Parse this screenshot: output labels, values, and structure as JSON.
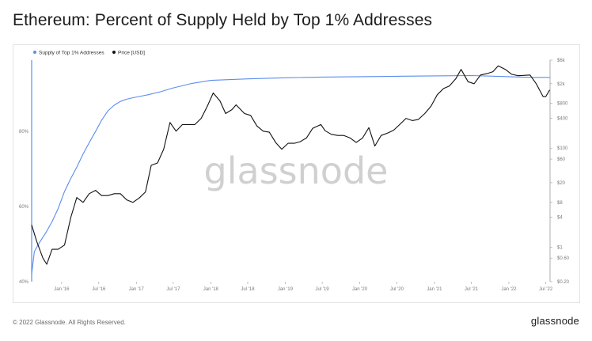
{
  "title": "Ethereum: Percent of Supply Held by Top 1% Addresses",
  "footer": {
    "copyright": "© 2022 Glassnode. All Rights Reserved.",
    "brand": "glassnode"
  },
  "watermark": "glassnode",
  "colors": {
    "supply": "#5b8def",
    "price": "#111111",
    "grid": "#eeeeee",
    "axis": "#9a9a9a"
  },
  "chart_data": {
    "type": "line",
    "title": "Ethereum: Percent of Supply Held by Top 1% Addresses",
    "legend_position": "top-left",
    "grid": false,
    "x_ticks": [
      "Jan '16",
      "Jul '16",
      "Jan '17",
      "Jul '17",
      "Jan '18",
      "Jul '18",
      "Jan '19",
      "Jul '19",
      "Jan '20",
      "Jul '20",
      "Jan '21",
      "Jul '21",
      "Jan '22",
      "Jul '22"
    ],
    "y_left": {
      "scale": "linear",
      "range": [
        40,
        99
      ],
      "ticks": [
        40,
        60,
        80
      ],
      "tick_labels": [
        "40%",
        "60%",
        "80%"
      ]
    },
    "y_right": {
      "scale": "log",
      "range": [
        0.2,
        6000
      ],
      "ticks": [
        0.2,
        0.6,
        1,
        4,
        8,
        20,
        60,
        100,
        400,
        800,
        2000,
        6000
      ],
      "tick_labels": [
        "$0.20",
        "$0.60",
        "$1",
        "$4",
        "$8",
        "$20",
        "$60",
        "$100",
        "$400",
        "$800",
        "$2k",
        "$6k"
      ]
    },
    "series": [
      {
        "name": "Supply of Top 1% Addresses",
        "axis": "left",
        "color": "#5b8def",
        "x": [
          "2015-08-07",
          "2015-08-20",
          "2015-09-15",
          "2015-10-15",
          "2015-11-15",
          "2015-12-15",
          "2016-01-15",
          "2016-02-15",
          "2016-03-15",
          "2016-04-15",
          "2016-05-15",
          "2016-06-15",
          "2016-07-15",
          "2016-08-15",
          "2016-09-15",
          "2016-10-15",
          "2016-11-15",
          "2016-12-15",
          "2017-01-15",
          "2017-03-01",
          "2017-05-01",
          "2017-07-01",
          "2017-10-01",
          "2018-01-01",
          "2018-07-01",
          "2019-01-01",
          "2019-07-01",
          "2020-01-01",
          "2020-07-01",
          "2021-01-01",
          "2021-07-01",
          "2022-01-01",
          "2022-03-01",
          "2022-05-01",
          "2022-07-01",
          "2022-07-20"
        ],
        "y": [
          42,
          48,
          50.5,
          53,
          56,
          59.5,
          64,
          67.5,
          70.5,
          74,
          77,
          80,
          83,
          85.5,
          87,
          88,
          88.6,
          89,
          89.3,
          89.8,
          90.6,
          91.6,
          92.8,
          93.6,
          94,
          94.3,
          94.5,
          94.6,
          94.7,
          94.8,
          94.9,
          94.6,
          94.5,
          94.4,
          94.4,
          94.4
        ]
      },
      {
        "name": "Price [USD]",
        "axis": "right",
        "color": "#111111",
        "x": [
          "2015-08-07",
          "2015-09-01",
          "2015-10-01",
          "2015-10-20",
          "2015-11-15",
          "2015-12-15",
          "2016-01-15",
          "2016-02-15",
          "2016-03-15",
          "2016-04-15",
          "2016-05-15",
          "2016-06-15",
          "2016-07-15",
          "2016-08-15",
          "2016-09-15",
          "2016-10-15",
          "2016-11-15",
          "2016-12-15",
          "2017-01-15",
          "2017-02-15",
          "2017-03-15",
          "2017-04-15",
          "2017-05-15",
          "2017-06-15",
          "2017-07-15",
          "2017-08-15",
          "2017-09-15",
          "2017-10-15",
          "2017-11-15",
          "2017-12-15",
          "2018-01-13",
          "2018-02-15",
          "2018-03-15",
          "2018-04-15",
          "2018-05-05",
          "2018-06-15",
          "2018-07-15",
          "2018-08-15",
          "2018-09-15",
          "2018-10-15",
          "2018-11-15",
          "2018-12-15",
          "2019-01-15",
          "2019-02-15",
          "2019-03-15",
          "2019-04-15",
          "2019-05-15",
          "2019-06-25",
          "2019-07-15",
          "2019-08-15",
          "2019-09-15",
          "2019-10-15",
          "2019-11-15",
          "2019-12-15",
          "2020-01-15",
          "2020-02-15",
          "2020-03-15",
          "2020-04-15",
          "2020-05-15",
          "2020-06-15",
          "2020-07-15",
          "2020-08-15",
          "2020-09-15",
          "2020-10-15",
          "2020-11-15",
          "2020-12-15",
          "2021-01-15",
          "2021-02-15",
          "2021-03-15",
          "2021-04-15",
          "2021-05-12",
          "2021-06-15",
          "2021-07-15",
          "2021-08-15",
          "2021-09-15",
          "2021-10-15",
          "2021-11-10",
          "2021-12-15",
          "2022-01-15",
          "2022-02-15",
          "2022-03-15",
          "2022-04-15",
          "2022-05-15",
          "2022-06-18",
          "2022-07-01",
          "2022-07-20"
        ],
        "y": [
          2.8,
          1.3,
          0.6,
          0.45,
          0.9,
          0.9,
          1.1,
          4,
          10,
          8,
          12,
          14,
          11,
          11,
          12,
          12,
          9,
          8,
          9.8,
          13,
          45,
          50,
          95,
          330,
          220,
          300,
          300,
          300,
          400,
          700,
          1300,
          900,
          500,
          600,
          750,
          500,
          460,
          280,
          220,
          210,
          130,
          95,
          125,
          125,
          135,
          160,
          250,
          300,
          225,
          190,
          180,
          180,
          160,
          130,
          160,
          260,
          110,
          180,
          200,
          230,
          300,
          400,
          360,
          380,
          500,
          700,
          1200,
          1600,
          1800,
          2500,
          3900,
          2200,
          2000,
          3000,
          3200,
          3500,
          4600,
          3900,
          3100,
          2900,
          2950,
          3000,
          2000,
          1100,
          1100,
          1500
        ]
      }
    ]
  }
}
